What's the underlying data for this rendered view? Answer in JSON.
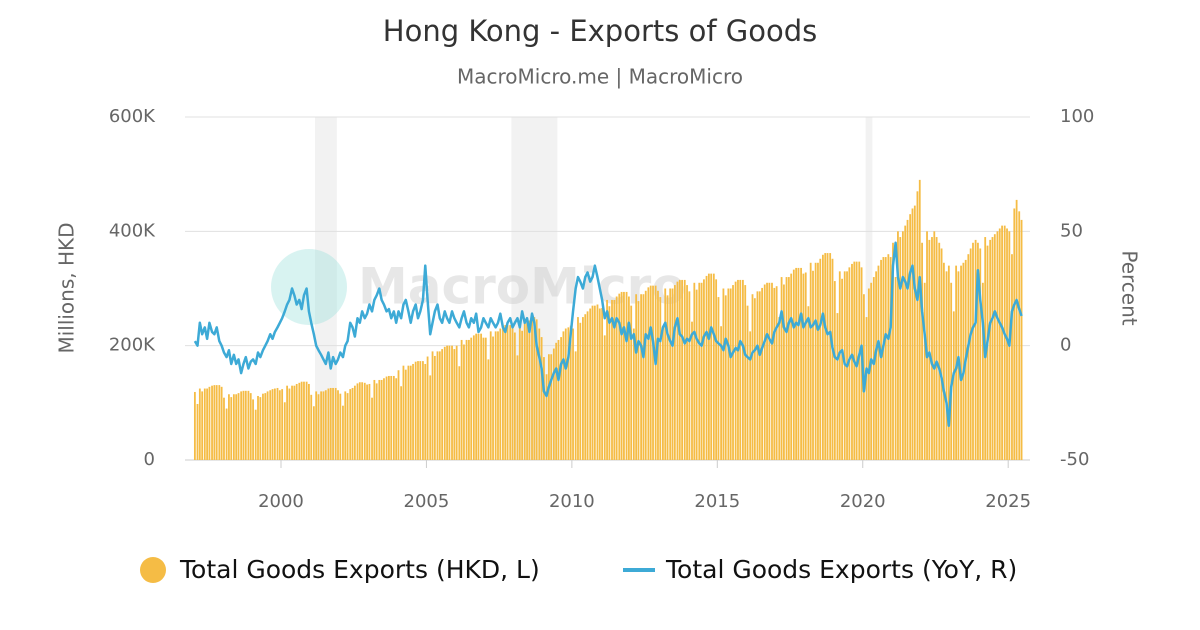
{
  "chart_data": {
    "type": "combo",
    "title": "Hong Kong - Exports of Goods",
    "subtitle": "MacroMicro.me | MacroMicro",
    "watermark": "MacroMicro",
    "y_label": "Millions, HKD",
    "y2_label": "Percent",
    "xlim": [
      1996.7,
      2025.75
    ],
    "xticks": [
      2000,
      2005,
      2010,
      2015,
      2020,
      2025
    ],
    "ylim": [
      0,
      600000
    ],
    "yticks": [
      0,
      {
        "value": 200000,
        "label": "200K"
      },
      {
        "value": 400000,
        "label": "400K"
      },
      {
        "value": 600000,
        "label": "600K"
      }
    ],
    "y2lim": [
      -50,
      100
    ],
    "y2ticks": [
      -50,
      0,
      50,
      100
    ],
    "grid": true,
    "shaded_periods": [
      [
        2001.17,
        2001.92
      ],
      [
        2007.92,
        2009.5
      ],
      [
        2020.1,
        2020.33
      ]
    ],
    "x": [
      1997.04,
      1997.13,
      1997.21,
      1997.29,
      1997.38,
      1997.46,
      1997.54,
      1997.63,
      1997.71,
      1997.79,
      1997.88,
      1997.96,
      1998.04,
      1998.13,
      1998.21,
      1998.29,
      1998.38,
      1998.46,
      1998.54,
      1998.63,
      1998.71,
      1998.79,
      1998.88,
      1998.96,
      1999.04,
      1999.13,
      1999.21,
      1999.29,
      1999.38,
      1999.46,
      1999.54,
      1999.63,
      1999.71,
      1999.79,
      1999.88,
      1999.96,
      2000.04,
      2000.13,
      2000.21,
      2000.29,
      2000.38,
      2000.46,
      2000.54,
      2000.63,
      2000.71,
      2000.79,
      2000.88,
      2000.96,
      2001.04,
      2001.13,
      2001.21,
      2001.29,
      2001.38,
      2001.46,
      2001.54,
      2001.63,
      2001.71,
      2001.79,
      2001.88,
      2001.96,
      2002.04,
      2002.13,
      2002.21,
      2002.29,
      2002.38,
      2002.46,
      2002.54,
      2002.63,
      2002.71,
      2002.79,
      2002.88,
      2002.96,
      2003.04,
      2003.13,
      2003.21,
      2003.29,
      2003.38,
      2003.46,
      2003.54,
      2003.63,
      2003.71,
      2003.79,
      2003.88,
      2003.96,
      2004.04,
      2004.13,
      2004.21,
      2004.29,
      2004.38,
      2004.46,
      2004.54,
      2004.63,
      2004.71,
      2004.79,
      2004.88,
      2004.96,
      2005.04,
      2005.13,
      2005.21,
      2005.29,
      2005.38,
      2005.46,
      2005.54,
      2005.63,
      2005.71,
      2005.79,
      2005.88,
      2005.96,
      2006.04,
      2006.13,
      2006.21,
      2006.29,
      2006.38,
      2006.46,
      2006.54,
      2006.63,
      2006.71,
      2006.79,
      2006.88,
      2006.96,
      2007.04,
      2007.13,
      2007.21,
      2007.29,
      2007.38,
      2007.46,
      2007.54,
      2007.63,
      2007.71,
      2007.79,
      2007.88,
      2007.96,
      2008.04,
      2008.13,
      2008.21,
      2008.29,
      2008.38,
      2008.46,
      2008.54,
      2008.63,
      2008.71,
      2008.79,
      2008.88,
      2008.96,
      2009.04,
      2009.13,
      2009.21,
      2009.29,
      2009.38,
      2009.46,
      2009.54,
      2009.63,
      2009.71,
      2009.79,
      2009.88,
      2009.96,
      2010.04,
      2010.13,
      2010.21,
      2010.29,
      2010.38,
      2010.46,
      2010.54,
      2010.63,
      2010.71,
      2010.79,
      2010.88,
      2010.96,
      2011.04,
      2011.13,
      2011.21,
      2011.29,
      2011.38,
      2011.46,
      2011.54,
      2011.63,
      2011.71,
      2011.79,
      2011.88,
      2011.96,
      2012.04,
      2012.13,
      2012.21,
      2012.29,
      2012.38,
      2012.46,
      2012.54,
      2012.63,
      2012.71,
      2012.79,
      2012.88,
      2012.96,
      2013.04,
      2013.13,
      2013.21,
      2013.29,
      2013.38,
      2013.46,
      2013.54,
      2013.63,
      2013.71,
      2013.79,
      2013.88,
      2013.96,
      2014.04,
      2014.13,
      2014.21,
      2014.29,
      2014.38,
      2014.46,
      2014.54,
      2014.63,
      2014.71,
      2014.79,
      2014.88,
      2014.96,
      2015.04,
      2015.13,
      2015.21,
      2015.29,
      2015.38,
      2015.46,
      2015.54,
      2015.63,
      2015.71,
      2015.79,
      2015.88,
      2015.96,
      2016.04,
      2016.13,
      2016.21,
      2016.29,
      2016.38,
      2016.46,
      2016.54,
      2016.63,
      2016.71,
      2016.79,
      2016.88,
      2016.96,
      2017.04,
      2017.13,
      2017.21,
      2017.29,
      2017.38,
      2017.46,
      2017.54,
      2017.63,
      2017.71,
      2017.79,
      2017.88,
      2017.96,
      2018.04,
      2018.13,
      2018.21,
      2018.29,
      2018.38,
      2018.46,
      2018.54,
      2018.63,
      2018.71,
      2018.79,
      2018.88,
      2018.96,
      2019.04,
      2019.13,
      2019.21,
      2019.29,
      2019.38,
      2019.46,
      2019.54,
      2019.63,
      2019.71,
      2019.79,
      2019.88,
      2019.96,
      2020.04,
      2020.13,
      2020.21,
      2020.29,
      2020.38,
      2020.46,
      2020.54,
      2020.63,
      2020.71,
      2020.79,
      2020.88,
      2020.96,
      2021.04,
      2021.13,
      2021.21,
      2021.29,
      2021.38,
      2021.46,
      2021.54,
      2021.63,
      2021.71,
      2021.79,
      2021.88,
      2021.96,
      2022.04,
      2022.13,
      2022.21,
      2022.29,
      2022.38,
      2022.46,
      2022.54,
      2022.63,
      2022.71,
      2022.79,
      2022.88,
      2022.96,
      2023.04,
      2023.13,
      2023.21,
      2023.29,
      2023.38,
      2023.46,
      2023.54,
      2023.63,
      2023.71,
      2023.79,
      2023.88,
      2023.96,
      2024.04,
      2024.13,
      2024.21,
      2024.29,
      2024.38,
      2024.46,
      2024.54,
      2024.63,
      2024.71,
      2024.79,
      2024.88,
      2024.96,
      2025.04,
      2025.13,
      2025.21,
      2025.29,
      2025.38,
      2025.46
    ],
    "series": [
      {
        "name": "Total Goods Exports (HKD, L)",
        "type": "bar",
        "color": "#f5bc45",
        "values": [
          119000,
          98000,
          125000,
          120000,
          125000,
          125000,
          128000,
          130000,
          131000,
          131000,
          131000,
          128000,
          109000,
          90000,
          115000,
          110000,
          115000,
          115000,
          117000,
          120000,
          121000,
          121000,
          121000,
          117000,
          106000,
          88000,
          112000,
          110000,
          116000,
          117000,
          120000,
          122000,
          124000,
          125000,
          126000,
          122000,
          124000,
          101000,
          130000,
          125000,
          130000,
          130000,
          133000,
          135000,
          137000,
          137000,
          137000,
          133000,
          114000,
          94000,
          120000,
          115000,
          120000,
          120000,
          122000,
          125000,
          126000,
          126000,
          126000,
          122000,
          116000,
          95000,
          120000,
          117000,
          124000,
          126000,
          130000,
          134000,
          136000,
          136000,
          135000,
          132000,
          133000,
          109000,
          140000,
          134000,
          140000,
          140000,
          143000,
          146000,
          147000,
          147000,
          147000,
          143000,
          157000,
          129000,
          165000,
          158000,
          165000,
          165000,
          168000,
          172000,
          173000,
          173000,
          173000,
          168000,
          181000,
          148000,
          190000,
          182000,
          190000,
          190000,
          194000,
          198000,
          200000,
          200000,
          200000,
          194000,
          200000,
          164000,
          210000,
          202000,
          210000,
          210000,
          214000,
          218000,
          221000,
          221000,
          221000,
          214000,
          214000,
          176000,
          225000,
          216000,
          225000,
          225000,
          230000,
          234000,
          236000,
          236000,
          236000,
          230000,
          223000,
          183000,
          235000,
          226000,
          240000,
          240000,
          244000,
          248000,
          250000,
          246000,
          230000,
          215000,
          180000,
          150000,
          185000,
          185000,
          195000,
          205000,
          210000,
          215000,
          225000,
          230000,
          232000,
          235000,
          230000,
          190000,
          250000,
          240000,
          250000,
          255000,
          260000,
          265000,
          270000,
          270000,
          272000,
          265000,
          266000,
          218000,
          280000,
          269000,
          280000,
          280000,
          286000,
          291000,
          294000,
          294000,
          294000,
          286000,
          270000,
          230000,
          290000,
          278000,
          290000,
          290000,
          296000,
          302000,
          305000,
          305000,
          305000,
          296000,
          285000,
          234000,
          300000,
          288000,
          300000,
          300000,
          306000,
          312000,
          315000,
          315000,
          315000,
          306000,
          295000,
          242000,
          310000,
          298000,
          310000,
          310000,
          316000,
          322000,
          326000,
          326000,
          326000,
          316000,
          285000,
          234000,
          300000,
          288000,
          300000,
          300000,
          306000,
          312000,
          315000,
          315000,
          315000,
          306000,
          270000,
          225000,
          290000,
          283000,
          295000,
          295000,
          301000,
          307000,
          310000,
          310000,
          310000,
          301000,
          304000,
          250000,
          320000,
          307000,
          320000,
          320000,
          326000,
          333000,
          336000,
          336000,
          336000,
          326000,
          328000,
          269000,
          345000,
          331000,
          345000,
          345000,
          352000,
          359000,
          362000,
          362000,
          362000,
          352000,
          313000,
          257000,
          330000,
          317000,
          330000,
          330000,
          337000,
          343000,
          347000,
          347000,
          347000,
          337000,
          290000,
          250000,
          300000,
          310000,
          320000,
          330000,
          340000,
          350000,
          355000,
          355000,
          360000,
          355000,
          380000,
          320000,
          400000,
          390000,
          400000,
          410000,
          420000,
          430000,
          440000,
          445000,
          470000,
          490000,
          380000,
          310000,
          400000,
          385000,
          390000,
          400000,
          390000,
          380000,
          370000,
          345000,
          330000,
          340000,
          310000,
          260000,
          340000,
          330000,
          340000,
          345000,
          350000,
          360000,
          370000,
          380000,
          385000,
          380000,
          370000,
          310000,
          390000,
          375000,
          385000,
          390000,
          395000,
          400000,
          405000,
          410000,
          410000,
          405000,
          400000,
          360000,
          440000,
          455000,
          435000,
          420000
        ]
      },
      {
        "name": "Total Goods Exports (YoY, R)",
        "type": "line",
        "axis": "y2",
        "color": "#3daad6",
        "values": [
          2,
          0,
          10,
          5,
          8,
          3,
          10,
          6,
          5,
          8,
          2,
          0,
          -3,
          -5,
          -2,
          -8,
          -4,
          -8,
          -6,
          -12,
          -8,
          -5,
          -10,
          -7,
          -6,
          -8,
          -3,
          -5,
          -2,
          0,
          2,
          5,
          3,
          6,
          8,
          10,
          12,
          15,
          18,
          20,
          25,
          22,
          18,
          20,
          16,
          22,
          25,
          15,
          10,
          5,
          0,
          -2,
          -4,
          -6,
          -8,
          -3,
          -10,
          -5,
          -8,
          -6,
          -3,
          -5,
          0,
          2,
          10,
          8,
          4,
          12,
          10,
          15,
          12,
          14,
          18,
          15,
          20,
          22,
          25,
          20,
          18,
          15,
          16,
          12,
          15,
          10,
          15,
          12,
          18,
          20,
          15,
          10,
          15,
          18,
          12,
          15,
          20,
          35,
          20,
          5,
          10,
          15,
          18,
          12,
          10,
          15,
          12,
          10,
          15,
          12,
          10,
          8,
          12,
          15,
          10,
          8,
          12,
          10,
          14,
          6,
          8,
          12,
          10,
          8,
          12,
          10,
          8,
          10,
          14,
          8,
          6,
          10,
          12,
          8,
          10,
          12,
          8,
          15,
          10,
          12,
          6,
          14,
          10,
          0,
          -5,
          -10,
          -20,
          -22,
          -18,
          -15,
          -12,
          -10,
          -15,
          -8,
          -6,
          -10,
          -5,
          5,
          15,
          25,
          30,
          28,
          25,
          30,
          32,
          28,
          30,
          35,
          30,
          25,
          20,
          12,
          15,
          10,
          12,
          8,
          12,
          10,
          5,
          8,
          2,
          10,
          3,
          5,
          -3,
          2,
          0,
          -5,
          5,
          3,
          8,
          2,
          -8,
          3,
          2,
          8,
          10,
          5,
          2,
          0,
          8,
          12,
          5,
          4,
          1,
          3,
          2,
          5,
          6,
          3,
          1,
          0,
          4,
          6,
          3,
          8,
          5,
          2,
          1,
          0,
          -2,
          3,
          0,
          -5,
          -3,
          -1,
          -2,
          2,
          0,
          -4,
          -5,
          -6,
          -3,
          -2,
          0,
          -4,
          -1,
          2,
          5,
          3,
          1,
          6,
          8,
          10,
          15,
          8,
          6,
          10,
          12,
          8,
          10,
          9,
          14,
          8,
          10,
          12,
          8,
          9,
          11,
          7,
          9,
          14,
          8,
          5,
          6,
          -1,
          -5,
          -6,
          -3,
          -2,
          -8,
          -9,
          -6,
          -4,
          -7,
          -9,
          -4,
          0,
          -20,
          -10,
          -12,
          -6,
          -8,
          -2,
          2,
          -5,
          0,
          5,
          3,
          8,
          35,
          45,
          30,
          25,
          30,
          28,
          25,
          32,
          35,
          25,
          20,
          30,
          15,
          5,
          -5,
          -3,
          -8,
          -10,
          -7,
          -10,
          -14,
          -20,
          -25,
          -35,
          -18,
          -12,
          -10,
          -5,
          -15,
          -12,
          -6,
          0,
          5,
          8,
          10,
          33,
          20,
          10,
          -5,
          2,
          10,
          12,
          15,
          12,
          10,
          8,
          5,
          3,
          0,
          15,
          18,
          20,
          16,
          13
        ]
      }
    ]
  }
}
